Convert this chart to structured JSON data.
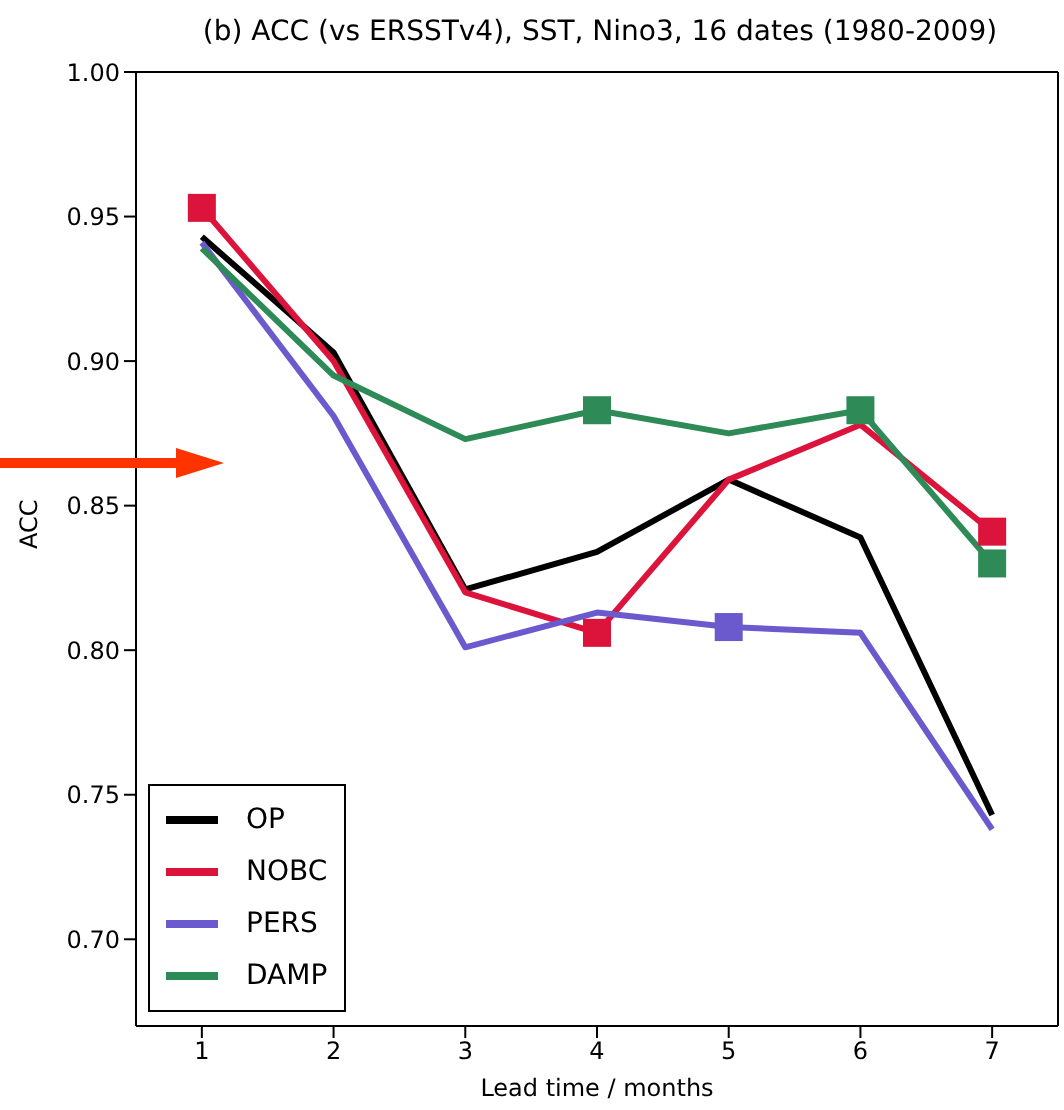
{
  "chart_data": {
    "type": "line",
    "title": "(b) ACC (vs ERSSTv4), SST, Nino3, 16 dates (1980-2009)",
    "xlabel": "Lead time / months",
    "ylabel": "ACC",
    "x": [
      1,
      2,
      3,
      4,
      5,
      6,
      7
    ],
    "series": [
      {
        "name": "OP",
        "color": "#000000",
        "values": [
          0.943,
          0.903,
          0.821,
          0.834,
          0.859,
          0.839,
          0.743
        ]
      },
      {
        "name": "NOBC",
        "color": "#dc143c",
        "values": [
          0.953,
          0.9,
          0.82,
          0.806,
          0.859,
          0.878,
          0.841
        ]
      },
      {
        "name": "PERS",
        "color": "#6a5acd",
        "values": [
          0.941,
          0.881,
          0.801,
          0.813,
          0.808,
          0.806,
          0.738
        ]
      },
      {
        "name": "DAMP",
        "color": "#2e8b57",
        "values": [
          0.939,
          0.895,
          0.873,
          0.883,
          0.875,
          0.883,
          0.83
        ]
      },
      {
        "type": "scatter",
        "color": "#dc143c",
        "x": [
          1,
          4,
          7
        ],
        "values": [
          0.953,
          0.806,
          0.841
        ],
        "marker": "square"
      },
      {
        "type": "scatter",
        "color": "#6a5acd",
        "x": [
          5
        ],
        "values": [
          0.808
        ],
        "marker": "square"
      },
      {
        "type": "scatter",
        "color": "#2e8b57",
        "x": [
          4,
          6,
          7
        ],
        "values": [
          0.883,
          0.883,
          0.83
        ],
        "marker": "square"
      }
    ],
    "xlim": [
      0.5,
      7.5
    ],
    "xticks": [
      1,
      2,
      3,
      4,
      5,
      6,
      7
    ],
    "ylim": [
      0.67,
      1.0
    ],
    "yticks": [
      {
        "value": 0.7,
        "label": "0.70"
      },
      {
        "value": 0.75,
        "label": "0.75"
      },
      {
        "value": 0.8,
        "label": "0.80"
      },
      {
        "value": 0.85,
        "label": "0.85"
      },
      {
        "value": 0.9,
        "label": "0.90"
      },
      {
        "value": 0.95,
        "label": "0.95"
      },
      {
        "value": 1.0,
        "label": "1.00"
      }
    ],
    "grid": false,
    "legend": "bottom left",
    "marker": "none",
    "line_style": "solid"
  }
}
